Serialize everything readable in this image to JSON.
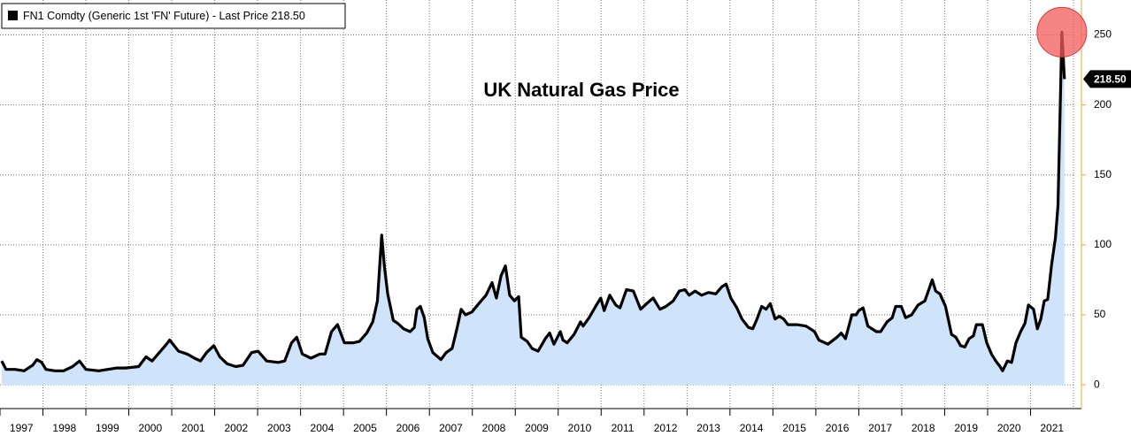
{
  "chart_data": {
    "type": "area",
    "title": "UK Natural Gas Price",
    "x": [
      1997.04,
      1997.14,
      1997.35,
      1997.56,
      1997.76,
      1997.86,
      1997.97,
      1998.07,
      1998.28,
      1998.48,
      1998.69,
      1998.85,
      1999.0,
      1999.3,
      1999.51,
      1999.72,
      1999.92,
      2000.23,
      2000.4,
      2000.54,
      2000.85,
      2000.95,
      2001.16,
      2001.36,
      2001.53,
      2001.67,
      2001.81,
      2001.98,
      2002.12,
      2002.29,
      2002.49,
      2002.66,
      2002.86,
      2003.01,
      2003.21,
      2003.48,
      2003.63,
      2003.79,
      2003.91,
      2004.04,
      2004.24,
      2004.45,
      2004.57,
      2004.72,
      2004.86,
      2005.02,
      2005.23,
      2005.37,
      2005.54,
      2005.68,
      2005.79,
      2005.89,
      2005.95,
      2006.03,
      2006.16,
      2006.26,
      2006.4,
      2006.55,
      2006.65,
      2006.71,
      2006.79,
      2006.88,
      2006.96,
      2007.08,
      2007.27,
      2007.39,
      2007.53,
      2007.64,
      2007.74,
      2007.84,
      2007.99,
      2008.15,
      2008.32,
      2008.46,
      2008.56,
      2008.67,
      2008.77,
      2008.87,
      2008.98,
      2009.08,
      2009.14,
      2009.28,
      2009.39,
      2009.53,
      2009.7,
      2009.8,
      2009.9,
      2010.05,
      2010.11,
      2010.21,
      2010.37,
      2010.52,
      2010.58,
      2010.72,
      2010.87,
      2010.99,
      2011.07,
      2011.2,
      2011.34,
      2011.44,
      2011.59,
      2011.75,
      2011.92,
      2012.06,
      2012.21,
      2012.37,
      2012.51,
      2012.68,
      2012.82,
      2012.95,
      2013.05,
      2013.19,
      2013.34,
      2013.5,
      2013.67,
      2013.81,
      2013.91,
      2014.02,
      2014.16,
      2014.28,
      2014.43,
      2014.53,
      2014.63,
      2014.74,
      2014.84,
      2014.94,
      2015.05,
      2015.15,
      2015.25,
      2015.35,
      2015.56,
      2015.77,
      2015.87,
      2015.97,
      2016.07,
      2016.28,
      2016.49,
      2016.59,
      2016.69,
      2016.84,
      2016.94,
      2017.0,
      2017.1,
      2017.21,
      2017.41,
      2017.51,
      2017.66,
      2017.78,
      2017.86,
      2017.99,
      2018.09,
      2018.23,
      2018.38,
      2018.54,
      2018.71,
      2018.79,
      2018.89,
      2019.02,
      2019.16,
      2019.26,
      2019.37,
      2019.47,
      2019.57,
      2019.67,
      2019.74,
      2019.88,
      2019.98,
      2020.09,
      2020.19,
      2020.29,
      2020.35,
      2020.46,
      2020.56,
      2020.66,
      2020.77,
      2020.87,
      2020.95,
      2021.07,
      2021.16,
      2021.24,
      2021.32,
      2021.4,
      2021.49,
      2021.58,
      2021.64,
      2021.73,
      2021.79
    ],
    "series": [
      {
        "name": "FN1 Comdty (Generic 1st 'FN' Future) - Last Price 218.50",
        "color": "#000000",
        "fill": "#cfe3fa",
        "values": [
          17,
          11,
          11,
          10,
          14,
          18,
          16,
          11,
          10,
          10,
          13,
          17,
          11,
          10,
          11,
          12,
          12,
          13,
          20,
          17,
          28,
          32,
          24,
          22,
          19,
          17,
          23,
          28,
          20,
          15,
          13,
          14,
          23,
          24,
          17,
          16,
          17,
          30,
          34,
          22,
          19,
          22,
          22,
          38,
          43,
          30,
          30,
          31,
          37,
          45,
          60,
          107,
          85,
          65,
          46,
          44,
          40,
          38,
          41,
          54,
          56,
          48,
          33,
          23,
          18,
          23,
          26,
          40,
          54,
          50,
          52,
          58,
          64,
          73,
          62,
          78,
          85,
          64,
          60,
          63,
          34,
          31,
          26,
          24,
          33,
          37,
          29,
          38,
          32,
          30,
          36,
          45,
          42,
          48,
          56,
          62,
          53,
          64,
          57,
          55,
          68,
          67,
          54,
          58,
          62,
          54,
          56,
          60,
          67,
          68,
          64,
          67,
          64,
          66,
          65,
          70,
          72,
          62,
          55,
          47,
          41,
          40,
          47,
          56,
          54,
          58,
          47,
          49,
          47,
          43,
          43,
          42,
          40,
          38,
          32,
          29,
          34,
          37,
          33,
          50,
          50,
          53,
          55,
          42,
          38,
          38,
          45,
          48,
          56,
          56,
          48,
          50,
          57,
          60,
          75,
          67,
          65,
          56,
          36,
          34,
          28,
          27,
          33,
          35,
          43,
          43,
          30,
          22,
          17,
          13,
          10,
          17,
          16,
          30,
          38,
          44,
          57,
          54,
          40,
          47,
          60,
          61,
          86,
          105,
          128,
          252,
          218.5
        ]
      }
    ],
    "last_price": {
      "value": 218.5,
      "label": "218.50"
    },
    "xlim": [
      1997,
      2022
    ],
    "xticks": [
      {
        "value": 1997,
        "label": "1997"
      },
      {
        "value": 1998,
        "label": "1998"
      },
      {
        "value": 1999,
        "label": "1999"
      },
      {
        "value": 2000,
        "label": "2000"
      },
      {
        "value": 2001,
        "label": "2001"
      },
      {
        "value": 2002,
        "label": "2002"
      },
      {
        "value": 2003,
        "label": "2003"
      },
      {
        "value": 2004,
        "label": "2004"
      },
      {
        "value": 2005,
        "label": "2005"
      },
      {
        "value": 2006,
        "label": "2006"
      },
      {
        "value": 2007,
        "label": "2007"
      },
      {
        "value": 2008,
        "label": "2008"
      },
      {
        "value": 2009,
        "label": "2009"
      },
      {
        "value": 2010,
        "label": "2010"
      },
      {
        "value": 2011,
        "label": "2011"
      },
      {
        "value": 2012,
        "label": "2012"
      },
      {
        "value": 2013,
        "label": "2013"
      },
      {
        "value": 2014,
        "label": "2014"
      },
      {
        "value": 2015,
        "label": "2015"
      },
      {
        "value": 2016,
        "label": "2016"
      },
      {
        "value": 2017,
        "label": "2017"
      },
      {
        "value": 2018,
        "label": "2018"
      },
      {
        "value": 2019,
        "label": "2019"
      },
      {
        "value": 2020,
        "label": "2020"
      },
      {
        "value": 2021,
        "label": "2021"
      }
    ],
    "ylim": [
      -17,
      275
    ],
    "yticks": [
      0,
      50,
      100,
      150,
      200,
      250
    ],
    "grid": true,
    "axis_color": "#f5a623",
    "highlight_color": "#f25c5c"
  }
}
